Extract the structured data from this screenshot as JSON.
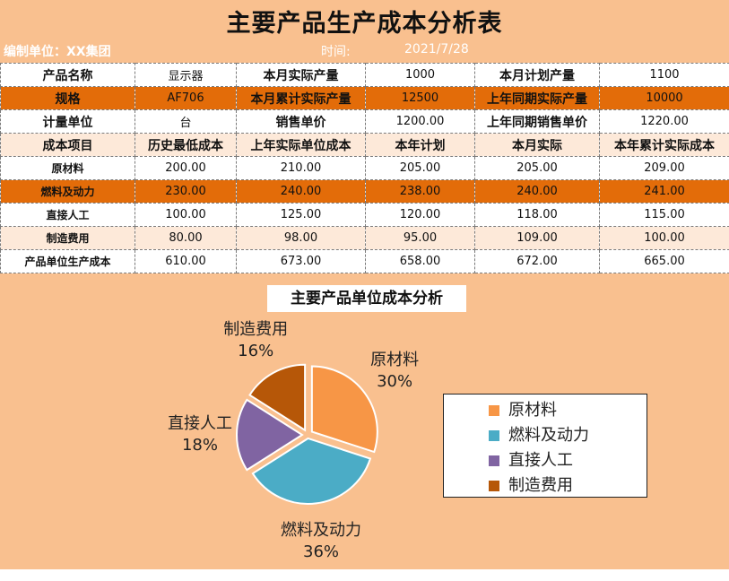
{
  "header": {
    "title": "主要产品生产成本分析表",
    "org_label": "编制单位：XX集团",
    "time_label": "时间:",
    "date": "2021/7/28"
  },
  "info_rows": [
    {
      "style": "white",
      "cells": [
        "产品名称",
        "显示器",
        "本月实际产量",
        "1000",
        "本月计划产量",
        "1100"
      ]
    },
    {
      "style": "orange",
      "cells": [
        "规格",
        "AF706",
        "本月累计实际产量",
        "12500",
        "上年同期实际产量",
        "10000"
      ]
    },
    {
      "style": "white",
      "cells": [
        "计量单位",
        "台",
        "销售单价",
        "1200.00",
        "上年同期销售单价",
        "1220.00"
      ]
    }
  ],
  "cost_header": [
    "成本项目",
    "历史最低成本",
    "上年实际单位成本",
    "本年计划",
    "本月实际",
    "本年累计实际成本"
  ],
  "cost_rows": [
    {
      "style": "white",
      "cells": [
        "原材料",
        "200.00",
        "210.00",
        "205.00",
        "205.00",
        "209.00"
      ]
    },
    {
      "style": "orange",
      "cells": [
        "燃料及动力",
        "230.00",
        "240.00",
        "238.00",
        "240.00",
        "241.00"
      ]
    },
    {
      "style": "white",
      "cells": [
        "直接人工",
        "100.00",
        "125.00",
        "120.00",
        "118.00",
        "115.00"
      ]
    },
    {
      "style": "light",
      "cells": [
        "制造费用",
        "80.00",
        "98.00",
        "95.00",
        "109.00",
        "100.00"
      ]
    },
    {
      "style": "white",
      "cells": [
        "产品单位生产成本",
        "610.00",
        "673.00",
        "658.00",
        "672.00",
        "665.00"
      ]
    }
  ],
  "chart_data": {
    "type": "pie",
    "title": "主要产品单位成本分析",
    "categories": [
      "原材料",
      "燃料及动力",
      "直接人工",
      "制造费用"
    ],
    "values": [
      30,
      36,
      18,
      16
    ],
    "value_labels": [
      "30%",
      "36%",
      "18%",
      "16%"
    ],
    "colors": [
      "#F79646",
      "#4BACC6",
      "#8064A2",
      "#B65708"
    ],
    "legend": "right"
  }
}
